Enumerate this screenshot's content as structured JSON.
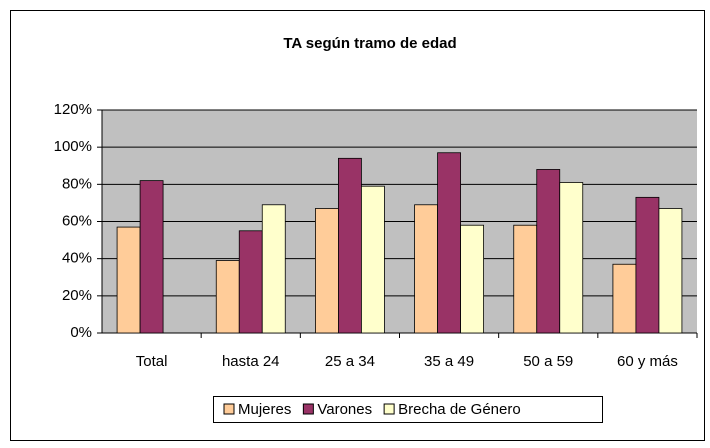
{
  "chart_data": {
    "type": "bar",
    "title": "TA según tramo de edad",
    "categories": [
      "Total",
      "hasta 24",
      "25 a 34",
      "35 a 49",
      "50 a 59",
      "60 y más"
    ],
    "series": [
      {
        "name": "Mujeres",
        "color": "#ffcc99",
        "values": [
          57,
          39,
          67,
          69,
          58,
          37
        ]
      },
      {
        "name": "Varones",
        "color": "#993366",
        "values": [
          82,
          55,
          94,
          97,
          88,
          73
        ]
      },
      {
        "name": "Brecha de Género",
        "color": "#ffffcc",
        "values": [
          null,
          69,
          79,
          58,
          81,
          67
        ]
      }
    ],
    "ylim": [
      0,
      120
    ],
    "yticks": [
      {
        "value": 0,
        "label": "0%"
      },
      {
        "value": 20,
        "label": "20%"
      },
      {
        "value": 40,
        "label": "40%"
      },
      {
        "value": 60,
        "label": "60%"
      },
      {
        "value": 80,
        "label": "80%"
      },
      {
        "value": 100,
        "label": "100%"
      },
      {
        "value": 120,
        "label": "120%"
      }
    ],
    "grid": true,
    "legend": "bottom"
  }
}
